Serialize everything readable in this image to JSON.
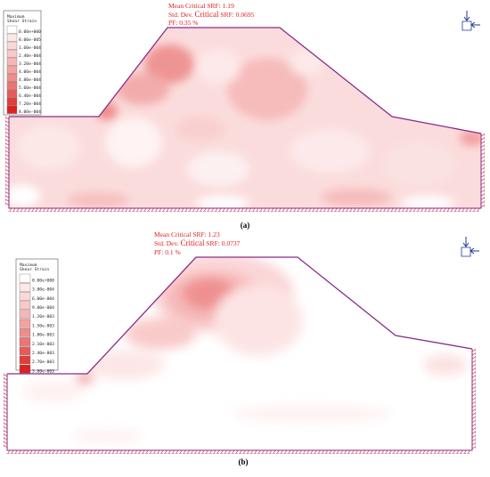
{
  "panels": [
    {
      "caption": "(a)",
      "stats": {
        "mean": "Mean Critical SRF: 1.19",
        "std_prefix": "Std. Dev.",
        "std_mid": "Critical",
        "std_suffix": "SRF: 0.0695",
        "pf": "PF: 0.35 %"
      },
      "legend": {
        "title_line1": "Maximum",
        "title_line2": "Shear Strain",
        "ticks": [
          "0.00e+000",
          "8.00e-005",
          "1.60e-004",
          "2.40e-004",
          "3.20e-004",
          "4.00e-004",
          "4.80e-004",
          "5.60e-004",
          "6.40e-004",
          "7.20e-004",
          "8.00e-004"
        ],
        "colors": [
          "#ffffff",
          "#fde8e8",
          "#fbd8d8",
          "#f9c8c8",
          "#f7b6b6",
          "#f4a2a2",
          "#f08c8c",
          "#ec7474",
          "#e85a5a",
          "#e33c3c",
          "#de2020"
        ]
      }
    },
    {
      "caption": "(b)",
      "stats": {
        "mean": "Mean Critical SRF: 1.23",
        "std_prefix": "Std. Dev.",
        "std_mid": "Critical",
        "std_suffix": "SRF: 0.0737",
        "pf": "PF: 0.1 %"
      },
      "legend": {
        "title_line1": "Maximum",
        "title_line2": "Shear Strain",
        "ticks": [
          "0.00e+000",
          "3.00e-004",
          "6.00e-004",
          "9.00e-004",
          "1.20e-003",
          "1.50e-003",
          "1.80e-003",
          "2.10e-003",
          "2.40e-003",
          "2.70e-003",
          "3.00e-003"
        ],
        "colors": [
          "#ffffff",
          "#fde8e8",
          "#fbd8d8",
          "#f9c8c8",
          "#f7b6b6",
          "#f4a2a2",
          "#f08c8c",
          "#ec7474",
          "#e85a5a",
          "#e33c3c",
          "#de2020"
        ]
      }
    }
  ],
  "colors": {
    "outline": "#8a2a8a",
    "stats_text": "#e02020",
    "support": "#c02040",
    "icon": "#1a3a8a"
  }
}
